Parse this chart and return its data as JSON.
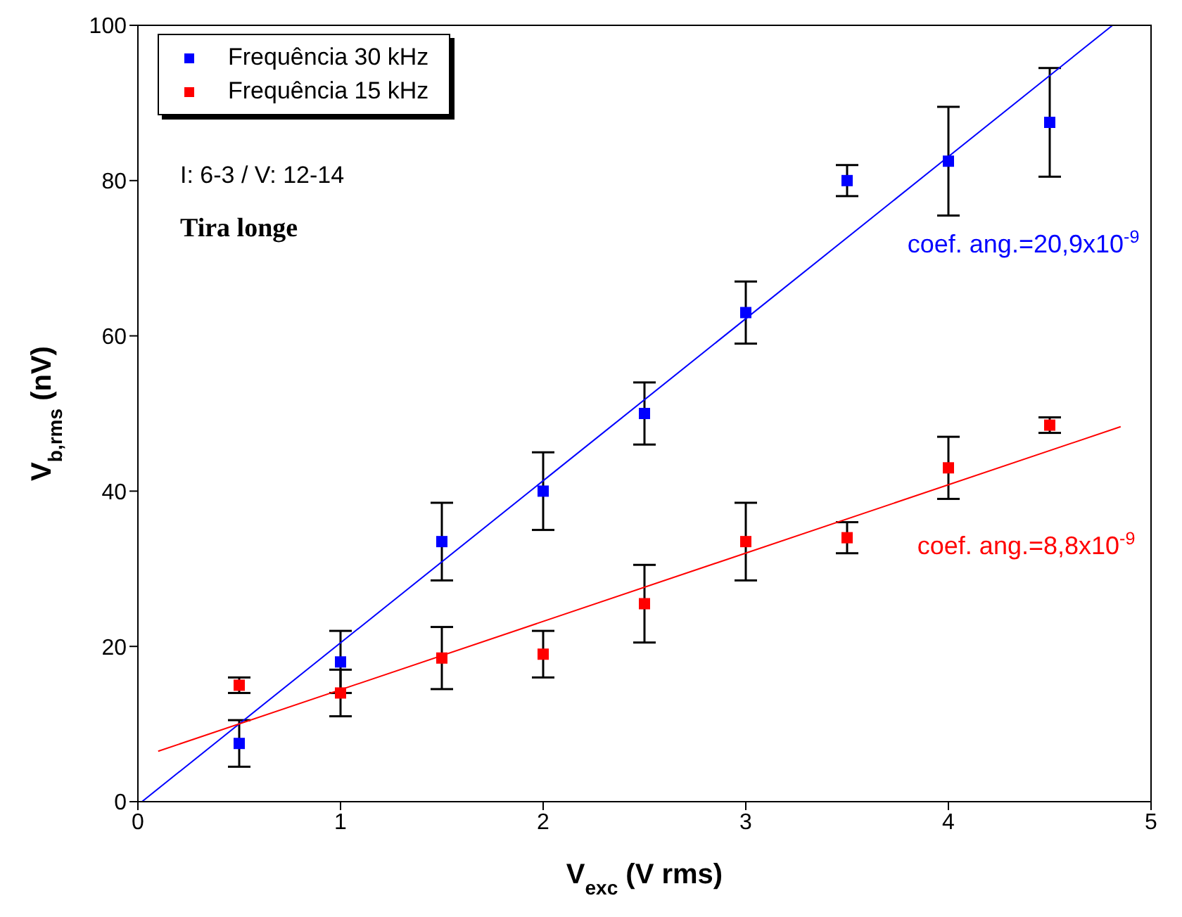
{
  "chart_data": {
    "type": "scatter",
    "xlabel": "V$_{exc}$ (V rms)",
    "ylabel": "V$_{b,rms}$ (nV)",
    "xlim": [
      0,
      5
    ],
    "xticks": [
      0,
      1,
      2,
      3,
      4,
      5
    ],
    "ylim": [
      0,
      100
    ],
    "yticks": [
      0,
      20,
      40,
      60,
      80,
      100
    ],
    "grid": false,
    "legend": "top left",
    "marker": "square",
    "series": [
      {
        "name": "Frequência 30 kHz",
        "color": "#0000ff",
        "x": [
          0.5,
          1,
          1.5,
          2,
          2.5,
          3,
          3.5,
          4,
          4.5
        ],
        "values": [
          7.5,
          18,
          33.5,
          40,
          50,
          63,
          80,
          82.5,
          87.5
        ],
        "errors": [
          3,
          4,
          5,
          5,
          4,
          4,
          2,
          7,
          7
        ]
      },
      {
        "name": "Frequência 15 kHz",
        "color": "#ff0000",
        "x": [
          0.5,
          1,
          1.5,
          2,
          2.5,
          3,
          3.5,
          4,
          4.5
        ],
        "values": [
          15,
          14,
          18.5,
          19,
          25.5,
          33.5,
          34,
          43,
          48.5
        ],
        "errors": [
          1,
          3,
          4,
          3,
          5,
          5,
          2,
          4,
          1
        ]
      },
      {
        "type": "line",
        "marker": "none",
        "name": "coef. ang.=20,9x10$^{-9}$",
        "color": "#0000ff",
        "x": [
          0.02,
          4.81
        ],
        "values": [
          0,
          100
        ]
      },
      {
        "type": "line",
        "marker": "none",
        "name": "coef. ang.=8,8x10$^{-9}$",
        "color": "#ff0000",
        "x": [
          0.1,
          4.85
        ],
        "values": [
          6.5,
          48.3
        ]
      }
    ],
    "annotations": [
      "I: 6-3 / V: 12-14",
      "Tira longe"
    ]
  }
}
